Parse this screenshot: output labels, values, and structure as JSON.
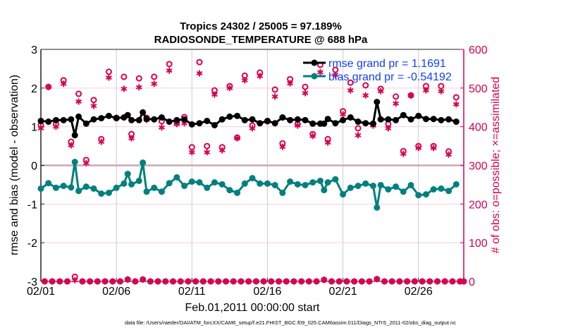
{
  "chart_data": {
    "type": "line",
    "title": [
      "Tropics 24302 / 25005 = 97.189%",
      "RADIOSONDE_TEMPERATURE @ 688 hPa"
    ],
    "xlabel": "Feb.01,2011 00:00:00 start",
    "ylabel": "rmse and bias (model - observation)",
    "y2label": "# of obs: o=possible; ×=assimilated",
    "footer": "data file: /Users/raeder/DAI/ATM_forcXX/CAM6_setup/f.e21.FHIST_BGC.f09_025.CAM6assim.011/Diags_NTrS_2011-02/obs_diag_output.nc",
    "x_units": "days since 2011-02-01 00:00",
    "xlim": [
      0,
      28
    ],
    "ylim": [
      -3,
      3
    ],
    "y2lim": [
      0,
      600
    ],
    "xticks": [
      0,
      5,
      10,
      15,
      20,
      25
    ],
    "xtick_labels": [
      "02/01",
      "02/06",
      "02/11",
      "02/16",
      "02/21",
      "02/26"
    ],
    "yticks": [
      -3,
      -2,
      -1,
      0,
      1,
      2,
      3
    ],
    "ytick_labels": [
      "-3",
      "-2",
      "-1",
      "0",
      "1",
      "2",
      "3"
    ],
    "y2ticks": [
      0,
      100,
      200,
      300,
      400,
      500,
      600
    ],
    "y2tick_labels": [
      "0",
      "100",
      "200",
      "300",
      "400",
      "500",
      "600"
    ],
    "grid": true,
    "legend_position": "top-right",
    "colors": {
      "rmse": "#000000",
      "bias": "#00807f",
      "obs": "#d8004c",
      "legend_text": "#1040ff",
      "grid": "#cccccc",
      "grid2": "#f5cfdc"
    },
    "series": [
      {
        "name": "rmse grand pr = 1.1691",
        "key": "rmse",
        "x": [
          0,
          0.5,
          1,
          1.5,
          2,
          2.25,
          2.5,
          3,
          3.5,
          4,
          4.5,
          5,
          5.5,
          5.75,
          6,
          6.5,
          6.75,
          7,
          7.5,
          8,
          8.5,
          9,
          9.5,
          10,
          10.5,
          11,
          11.5,
          12,
          12.5,
          13,
          13.5,
          14,
          14.5,
          15,
          15.5,
          16,
          16.5,
          17,
          17.5,
          18,
          18.5,
          18.75,
          19,
          19.5,
          20,
          20.5,
          21,
          21.5,
          22,
          22.25,
          22.5,
          23,
          23.5,
          24,
          24.5,
          25,
          25.5,
          26,
          26.5,
          27,
          27.5
        ],
        "y": [
          1.15,
          1.13,
          1.17,
          1.17,
          1.19,
          0.78,
          1.26,
          1.08,
          1.19,
          1.22,
          1.28,
          1.22,
          1.24,
          1.3,
          1.17,
          1.17,
          1.37,
          1.2,
          1.19,
          1.24,
          1.13,
          1.17,
          1.19,
          1.06,
          1.09,
          1.15,
          1.04,
          1.19,
          1.26,
          1.28,
          1.17,
          1.19,
          1.09,
          1.15,
          1.09,
          1.24,
          1.17,
          1.19,
          1.17,
          1.08,
          1.08,
          1.08,
          1.2,
          1.09,
          1.17,
          1.24,
          1.13,
          1.09,
          1.08,
          1.64,
          1.19,
          1.19,
          1.17,
          1.3,
          1.19,
          1.28,
          1.2,
          1.2,
          1.17,
          1.19,
          1.13
        ]
      },
      {
        "name": "bias grand pr = -0.54192",
        "key": "bias",
        "x": [
          0,
          0.5,
          1,
          1.5,
          2,
          2.25,
          2.5,
          3,
          3.5,
          4,
          4.5,
          5,
          5.5,
          5.75,
          6,
          6.5,
          6.75,
          7,
          7.5,
          8,
          8.5,
          9,
          9.5,
          10,
          10.5,
          11,
          11.5,
          12,
          12.5,
          13,
          13.5,
          14,
          14.5,
          15,
          15.5,
          16,
          16.5,
          17,
          17.5,
          18,
          18.5,
          18.75,
          19,
          19.5,
          20,
          20.5,
          21,
          21.5,
          22,
          22.25,
          22.5,
          23,
          23.5,
          24,
          24.5,
          25,
          25.5,
          26,
          26.5,
          27,
          27.5
        ],
        "y": [
          -0.6,
          -0.46,
          -0.58,
          -0.53,
          -0.57,
          0.09,
          -0.66,
          -0.55,
          -0.6,
          -0.73,
          -0.71,
          -0.58,
          -0.47,
          -0.22,
          -0.49,
          -0.4,
          0.07,
          -0.68,
          -0.58,
          -0.68,
          -0.46,
          -0.31,
          -0.53,
          -0.42,
          -0.44,
          -0.58,
          -0.44,
          -0.49,
          -0.64,
          -0.71,
          -0.47,
          -0.33,
          -0.47,
          -0.47,
          -0.51,
          -0.71,
          -0.42,
          -0.49,
          -0.51,
          -0.44,
          -0.4,
          -0.64,
          -0.44,
          -0.36,
          -0.75,
          -0.58,
          -0.53,
          -0.47,
          -0.53,
          -1.09,
          -0.51,
          -0.62,
          -0.55,
          -0.68,
          -0.51,
          -0.77,
          -0.75,
          -0.62,
          -0.6,
          -0.66,
          -0.49
        ]
      }
    ],
    "obs_main": {
      "x": [
        0,
        0.5,
        1,
        1.5,
        2,
        2.5,
        3,
        3.5,
        4,
        4.5,
        5,
        5.5,
        6,
        6.5,
        7,
        7.5,
        8,
        8.5,
        9,
        9.5,
        10,
        10.5,
        11,
        11.5,
        12,
        12.5,
        13,
        13.5,
        14,
        14.5,
        15,
        15.5,
        16,
        16.5,
        17,
        17.5,
        18,
        18.5,
        19,
        19.5,
        20,
        20.5,
        21,
        21.5,
        22,
        22.5,
        23,
        23.5,
        24,
        24.5,
        25,
        25.5,
        26,
        26.5,
        27,
        27.5
      ],
      "possible": [
        405,
        503,
        407,
        520,
        361,
        485,
        314,
        469,
        368,
        542,
        423,
        529,
        381,
        525,
        423,
        529,
        414,
        562,
        410,
        425,
        347,
        567,
        350,
        494,
        347,
        505,
        372,
        532,
        403,
        540,
        414,
        496,
        357,
        523,
        407,
        503,
        381,
        560,
        368,
        547,
        440,
        514,
        396,
        507,
        407,
        498,
        407,
        478,
        337,
        481,
        350,
        505,
        350,
        505,
        336,
        476
      ],
      "assimilated": [
        396,
        503,
        400,
        511,
        352,
        465,
        306,
        454,
        361,
        527,
        423,
        498,
        370,
        502,
        418,
        511,
        398,
        545,
        407,
        409,
        334,
        538,
        334,
        483,
        339,
        500,
        370,
        520,
        396,
        531,
        414,
        478,
        348,
        512,
        403,
        487,
        376,
        541,
        359,
        534,
        432,
        494,
        378,
        481,
        403,
        492,
        396,
        460,
        330,
        481,
        345,
        494,
        345,
        492,
        328,
        458
      ]
    },
    "obs_offhours": {
      "x": [
        0.25,
        0.75,
        1.25,
        1.75,
        2.25,
        2.75,
        3.25,
        3.75,
        4.25,
        4.75,
        5.25,
        5.75,
        6.25,
        6.75,
        7.25,
        7.75,
        8.25,
        8.75,
        9.25,
        9.75,
        10.25,
        10.75,
        11.25,
        11.75,
        12.25,
        12.75,
        13.25,
        13.75,
        14.25,
        14.75,
        15.25,
        15.75,
        16.25,
        16.75,
        17.25,
        17.75,
        18.25,
        18.75,
        19.25,
        19.75,
        20.25,
        20.75,
        21.25,
        21.75,
        22.25,
        22.75,
        23.25,
        23.75,
        24.25,
        24.75,
        25.25,
        25.75,
        26.25,
        26.75,
        27.25,
        27.75,
        28
      ],
      "possible": [
        0,
        0,
        0,
        0,
        12,
        0,
        0,
        0,
        0,
        0,
        0,
        5,
        0,
        5,
        0,
        0,
        0,
        0,
        0,
        0,
        0,
        0,
        0,
        0,
        0,
        0,
        0,
        0,
        0,
        0,
        0,
        0,
        0,
        0,
        0,
        0,
        0,
        4,
        0,
        0,
        0,
        0,
        0,
        0,
        6,
        0,
        0,
        0,
        0,
        0,
        0,
        0,
        0,
        0,
        0,
        0,
        0
      ],
      "assimilated": [
        0,
        0,
        0,
        0,
        3,
        0,
        0,
        0,
        0,
        0,
        0,
        5,
        0,
        5,
        0,
        0,
        0,
        0,
        0,
        0,
        0,
        0,
        0,
        0,
        0,
        0,
        0,
        0,
        0,
        0,
        0,
        0,
        0,
        0,
        0,
        0,
        0,
        4,
        0,
        0,
        0,
        0,
        0,
        0,
        6,
        0,
        0,
        0,
        0,
        0,
        0,
        0,
        0,
        0,
        0,
        0,
        0
      ]
    }
  }
}
